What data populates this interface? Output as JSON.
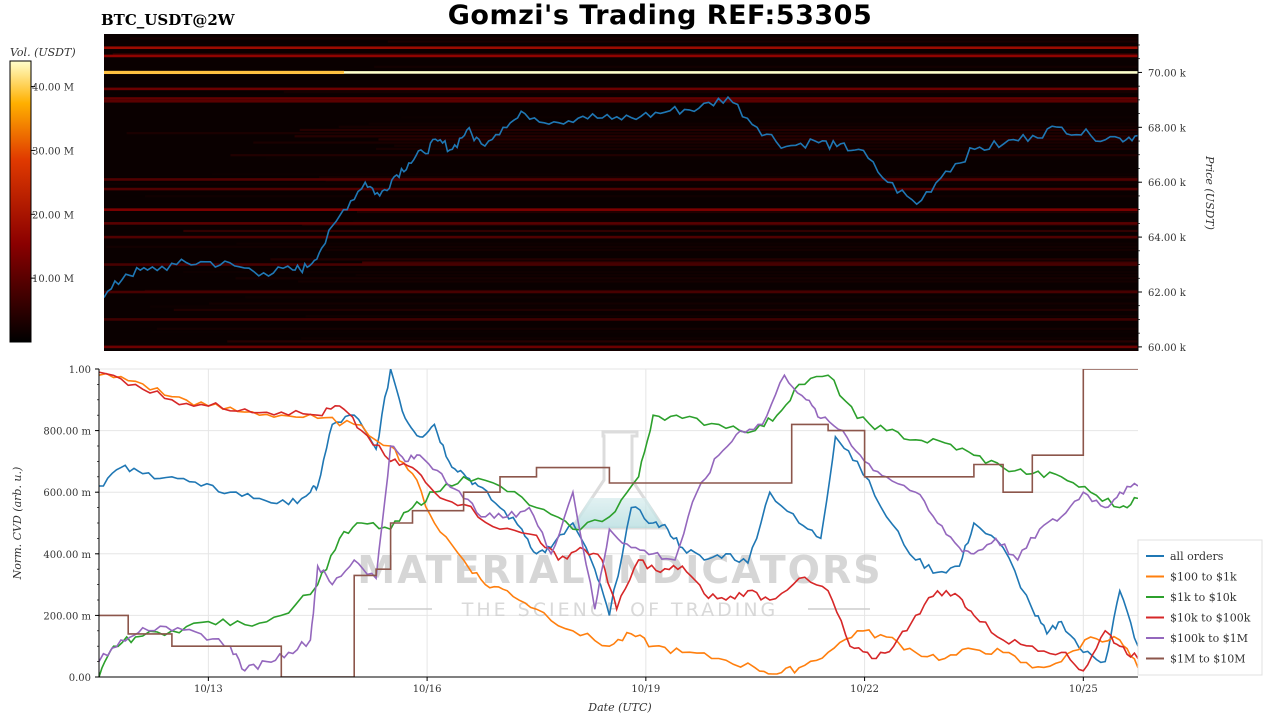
{
  "header": {
    "title": "Gomzi's Trading REF:53305",
    "pair": "BTC_USDT@2W"
  },
  "watermark": {
    "brand": "MATERIAL INDICATORS",
    "tagline": "THE SCIENCE OF TRADING"
  },
  "colors": {
    "heatmap_bg": "#0a0000",
    "price_line": "#1f77b4",
    "white_wall": "#ffffff"
  },
  "chart_data": [
    {
      "type": "heatmap",
      "colorbar": {
        "label": "Vol. (USDT)",
        "ticks": [
          "10.00 M",
          "20.00 M",
          "30.00 M",
          "40.00 M"
        ],
        "tick_values": [
          10,
          20,
          30,
          40
        ],
        "range": [
          0,
          44
        ]
      },
      "ylabel": "Price (USDT)",
      "y_ticks": [
        "60.00 k",
        "62.00 k",
        "64.00 k",
        "66.00 k",
        "68.00 k",
        "70.00 k"
      ],
      "y_tick_values": [
        60000,
        62000,
        64000,
        66000,
        68000,
        70000
      ],
      "ylim": [
        59850,
        71400
      ],
      "xlim": [
        "10/11 12:00",
        "10/25 18:00"
      ],
      "price_series": {
        "name": "Price",
        "x_days": [
          0,
          0.3,
          0.6,
          1.0,
          1.4,
          1.8,
          2.2,
          2.6,
          2.8,
          3.0,
          3.3,
          3.6,
          3.8,
          4.0,
          4.2,
          4.4,
          4.6,
          4.8,
          5.0,
          5.2,
          5.5,
          5.8,
          6.2,
          6.6,
          7.0,
          7.4,
          7.8,
          8.2,
          8.6,
          9.0,
          9.4,
          9.8,
          10.1,
          10.4,
          10.8,
          11.2,
          11.6,
          12.0,
          12.4,
          12.8,
          13.2,
          13.6,
          14.0,
          14.25
        ],
        "y": [
          61800,
          62650,
          62800,
          63000,
          63100,
          62950,
          62700,
          62800,
          62900,
          63600,
          65000,
          66000,
          65500,
          66200,
          66700,
          67100,
          67500,
          67200,
          67900,
          67400,
          68000,
          68500,
          68200,
          68400,
          68300,
          68400,
          68600,
          68700,
          69100,
          68000,
          67300,
          67500,
          67300,
          67200,
          66000,
          65200,
          66400,
          67200,
          67400,
          67700,
          68000,
          67700,
          67600,
          67700
        ]
      },
      "walls": [
        {
          "price": 70000,
          "volume": 44
        },
        {
          "price": 70900,
          "volume": 18
        },
        {
          "price": 70600,
          "volume": 16
        },
        {
          "price": 69400,
          "volume": 12
        },
        {
          "price": 69050,
          "volume": 11
        },
        {
          "price": 68950,
          "volume": 10
        },
        {
          "price": 66100,
          "volume": 9
        },
        {
          "price": 65750,
          "volume": 9
        },
        {
          "price": 65000,
          "volume": 14
        },
        {
          "price": 64500,
          "volume": 10
        },
        {
          "price": 64000,
          "volume": 9
        },
        {
          "price": 63000,
          "volume": 8
        },
        {
          "price": 62000,
          "volume": 8
        },
        {
          "price": 61000,
          "volume": 7
        },
        {
          "price": 60000,
          "volume": 12
        }
      ]
    },
    {
      "type": "line",
      "xlabel": "Date (UTC)",
      "ylabel": "Norm. CVD (arb. u.)",
      "ylim": [
        0,
        1
      ],
      "y_ticks": [
        "0.00",
        "200.00 m",
        "400.00 m",
        "600.00 m",
        "800.00 m",
        "1.00"
      ],
      "y_tick_values": [
        0,
        0.2,
        0.4,
        0.6,
        0.8,
        1.0
      ],
      "x_ticks": [
        "10/13",
        "10/16",
        "10/19",
        "10/22",
        "10/25"
      ],
      "x_tick_days": [
        1.5,
        4.5,
        7.5,
        10.5,
        13.5
      ],
      "xlim_days": [
        0,
        14.25
      ],
      "series": [
        {
          "name": "all orders",
          "color": "#1f77b4",
          "x": [
            0,
            0.3,
            0.6,
            1.0,
            1.4,
            1.8,
            2.2,
            2.6,
            2.9,
            3.0,
            3.2,
            3.5,
            3.8,
            4.0,
            4.2,
            4.4,
            4.6,
            4.8,
            5.0,
            5.2,
            5.5,
            5.8,
            6.0,
            6.2,
            6.5,
            6.8,
            7.0,
            7.3,
            7.6,
            7.8,
            8.0,
            8.3,
            8.6,
            8.9,
            9.2,
            9.6,
            9.9,
            10.1,
            10.4,
            10.8,
            11.2,
            11.5,
            11.8,
            12.0,
            12.4,
            12.8,
            13.0,
            13.2,
            13.5,
            13.8,
            14.0,
            14.25
          ],
          "y": [
            0.62,
            0.68,
            0.66,
            0.65,
            0.62,
            0.6,
            0.58,
            0.56,
            0.6,
            0.62,
            0.82,
            0.85,
            0.74,
            1.0,
            0.84,
            0.78,
            0.82,
            0.7,
            0.66,
            0.62,
            0.55,
            0.48,
            0.4,
            0.42,
            0.5,
            0.35,
            0.2,
            0.55,
            0.5,
            0.48,
            0.42,
            0.38,
            0.4,
            0.37,
            0.6,
            0.5,
            0.45,
            0.78,
            0.7,
            0.52,
            0.38,
            0.34,
            0.36,
            0.5,
            0.42,
            0.22,
            0.14,
            0.18,
            0.08,
            0.05,
            0.28,
            0.1
          ]
        },
        {
          "name": "$100 to $1k",
          "color": "#ff7f0e",
          "x": [
            0,
            0.5,
            1.0,
            1.5,
            2.0,
            2.5,
            3.0,
            3.5,
            4.0,
            4.3,
            4.6,
            5.0,
            5.3,
            5.6,
            6.0,
            6.5,
            7.0,
            7.3,
            7.6,
            8.0,
            8.5,
            9.0,
            9.3,
            9.6,
            10.0,
            10.4,
            10.8,
            11.2,
            11.6,
            12.0,
            12.4,
            12.8,
            13.2,
            13.6,
            14.0,
            14.25
          ],
          "y": [
            0.98,
            0.96,
            0.91,
            0.88,
            0.86,
            0.85,
            0.84,
            0.82,
            0.75,
            0.66,
            0.5,
            0.38,
            0.3,
            0.28,
            0.22,
            0.15,
            0.1,
            0.14,
            0.1,
            0.08,
            0.06,
            0.03,
            0.01,
            0.03,
            0.08,
            0.15,
            0.13,
            0.08,
            0.06,
            0.09,
            0.08,
            0.03,
            0.05,
            0.13,
            0.12,
            0.03
          ]
        },
        {
          "name": "$1k to $10k",
          "color": "#2ca02c",
          "x": [
            0,
            0.2,
            0.5,
            1.0,
            1.5,
            2.0,
            2.5,
            3.0,
            3.3,
            3.6,
            4.0,
            4.3,
            4.6,
            5.0,
            5.5,
            6.0,
            6.5,
            7.0,
            7.4,
            7.6,
            8.0,
            8.5,
            9.0,
            9.3,
            9.6,
            10.0,
            10.4,
            10.8,
            11.2,
            11.6,
            12.0,
            12.4,
            12.8,
            13.2,
            13.6,
            14.0,
            14.25
          ],
          "y": [
            0.0,
            0.1,
            0.13,
            0.15,
            0.18,
            0.17,
            0.2,
            0.3,
            0.45,
            0.5,
            0.48,
            0.55,
            0.6,
            0.65,
            0.62,
            0.55,
            0.48,
            0.52,
            0.65,
            0.85,
            0.84,
            0.82,
            0.8,
            0.85,
            0.95,
            0.98,
            0.84,
            0.8,
            0.77,
            0.76,
            0.72,
            0.68,
            0.66,
            0.65,
            0.6,
            0.55,
            0.58
          ]
        },
        {
          "name": "$10k to $100k",
          "color": "#d62728",
          "x": [
            0,
            0.5,
            1.0,
            1.5,
            2.0,
            2.5,
            3.0,
            3.3,
            3.6,
            4.0,
            4.3,
            4.6,
            5.0,
            5.5,
            6.0,
            6.3,
            6.6,
            6.9,
            7.1,
            7.4,
            7.7,
            8.0,
            8.3,
            8.6,
            8.9,
            9.2,
            9.6,
            10.0,
            10.3,
            10.6,
            10.9,
            11.2,
            11.5,
            11.8,
            12.0,
            12.4,
            12.8,
            13.2,
            13.5,
            13.8,
            14.0,
            14.25
          ],
          "y": [
            0.99,
            0.95,
            0.9,
            0.88,
            0.87,
            0.86,
            0.85,
            0.88,
            0.8,
            0.7,
            0.68,
            0.6,
            0.56,
            0.48,
            0.46,
            0.38,
            0.42,
            0.38,
            0.22,
            0.38,
            0.34,
            0.36,
            0.27,
            0.25,
            0.28,
            0.25,
            0.32,
            0.28,
            0.1,
            0.06,
            0.1,
            0.2,
            0.28,
            0.26,
            0.2,
            0.12,
            0.1,
            0.08,
            0.02,
            0.15,
            0.1,
            0.06
          ]
        },
        {
          "name": "$100k to $1M",
          "color": "#9467bd",
          "x": [
            0,
            0.3,
            0.6,
            1.0,
            1.4,
            1.8,
            2.0,
            2.3,
            2.6,
            2.9,
            3.0,
            3.2,
            3.5,
            3.8,
            4.0,
            4.2,
            4.4,
            4.7,
            5.0,
            5.3,
            5.6,
            5.9,
            6.2,
            6.5,
            6.8,
            7.0,
            7.3,
            7.6,
            7.9,
            8.2,
            8.5,
            8.8,
            9.1,
            9.4,
            9.7,
            9.9,
            10.2,
            10.5,
            10.8,
            11.2,
            11.5,
            11.8,
            12.0,
            12.3,
            12.6,
            12.9,
            13.2,
            13.5,
            13.8,
            14.0,
            14.25
          ],
          "y": [
            0.05,
            0.12,
            0.16,
            0.15,
            0.14,
            0.1,
            0.02,
            0.05,
            0.08,
            0.12,
            0.36,
            0.3,
            0.38,
            0.32,
            0.75,
            0.7,
            0.72,
            0.66,
            0.58,
            0.52,
            0.52,
            0.55,
            0.4,
            0.6,
            0.22,
            0.48,
            0.42,
            0.4,
            0.38,
            0.6,
            0.72,
            0.8,
            0.82,
            0.98,
            0.9,
            0.84,
            0.8,
            0.7,
            0.65,
            0.6,
            0.5,
            0.42,
            0.4,
            0.45,
            0.38,
            0.48,
            0.52,
            0.6,
            0.55,
            0.6,
            0.62
          ]
        },
        {
          "name": "$1M to $10M",
          "color": "#8c564b",
          "x": [
            0,
            0.4,
            1.0,
            1.5,
            2.0,
            2.5,
            3.0,
            3.2,
            3.5,
            3.8,
            4.0,
            4.3,
            4.6,
            5.0,
            5.5,
            6.0,
            6.5,
            7.0,
            7.3,
            7.6,
            8.0,
            8.5,
            9.0,
            9.5,
            10.0,
            10.5,
            11.0,
            11.5,
            12.0,
            12.4,
            12.8,
            13.2,
            13.5,
            14.0,
            14.25
          ],
          "y": [
            0.2,
            0.14,
            0.1,
            0.1,
            0.1,
            0.0,
            0.0,
            0.0,
            0.33,
            0.35,
            0.5,
            0.54,
            0.54,
            0.6,
            0.65,
            0.68,
            0.68,
            0.63,
            0.63,
            0.63,
            0.63,
            0.63,
            0.63,
            0.82,
            0.8,
            0.65,
            0.65,
            0.65,
            0.69,
            0.6,
            0.72,
            0.72,
            1.0,
            1.0,
            1.0
          ]
        }
      ]
    }
  ]
}
